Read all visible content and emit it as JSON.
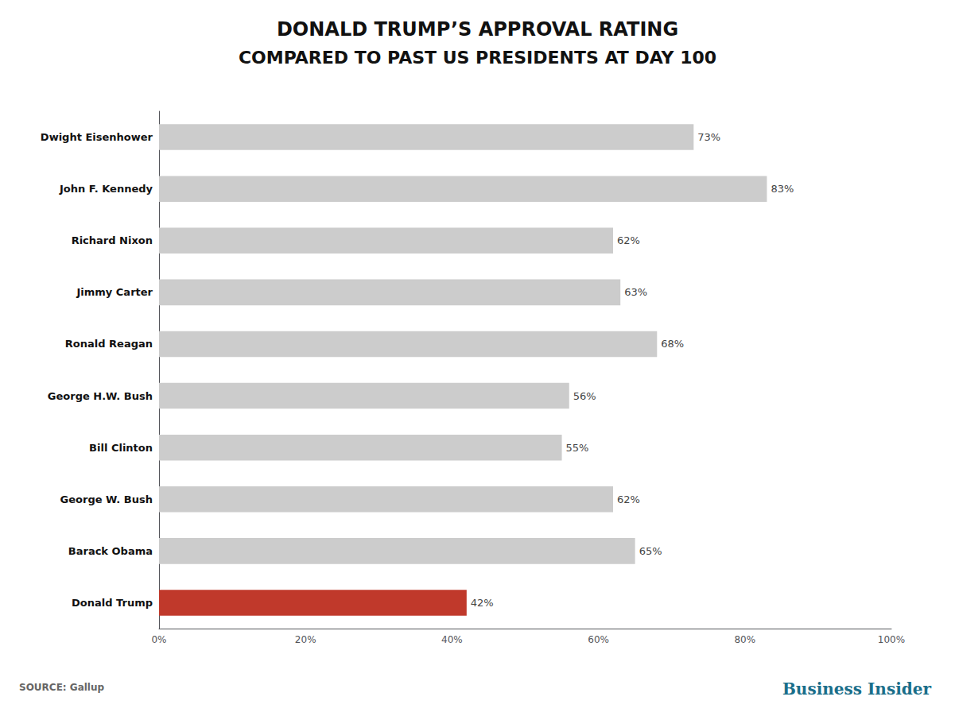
{
  "chart_data": {
    "type": "bar",
    "orientation": "horizontal",
    "title": "DONALD TRUMP’S APPROVAL RATING",
    "subtitle": "COMPARED TO PAST US PRESIDENTS AT DAY 100",
    "categories": [
      "Dwight Eisenhower",
      "John F. Kennedy",
      "Richard Nixon",
      "Jimmy Carter",
      "Ronald Reagan",
      "George H.W. Bush",
      "Bill Clinton",
      "George W. Bush",
      "Barack Obama",
      "Donald Trump"
    ],
    "values": [
      73,
      83,
      62,
      63,
      68,
      56,
      55,
      62,
      65,
      42
    ],
    "value_labels": [
      "73%",
      "83%",
      "62%",
      "63%",
      "68%",
      "56%",
      "55%",
      "62%",
      "65%",
      "42%"
    ],
    "data_labels": true,
    "colors": [
      "#cccccc",
      "#cccccc",
      "#cccccc",
      "#cccccc",
      "#cccccc",
      "#cccccc",
      "#cccccc",
      "#cccccc",
      "#cccccc",
      "#c0392b"
    ],
    "xlim": [
      0,
      100
    ],
    "xticks": [
      {
        "value": 0,
        "label": "0%"
      },
      {
        "value": 20,
        "label": "20%"
      },
      {
        "value": 40,
        "label": "40%"
      },
      {
        "value": 60,
        "label": "60%"
      },
      {
        "value": 80,
        "label": "80%"
      },
      {
        "value": 100,
        "label": "100%"
      }
    ],
    "grid": false,
    "annotations": [
      "SOURCE: Gallup",
      "Business Insider"
    ]
  }
}
